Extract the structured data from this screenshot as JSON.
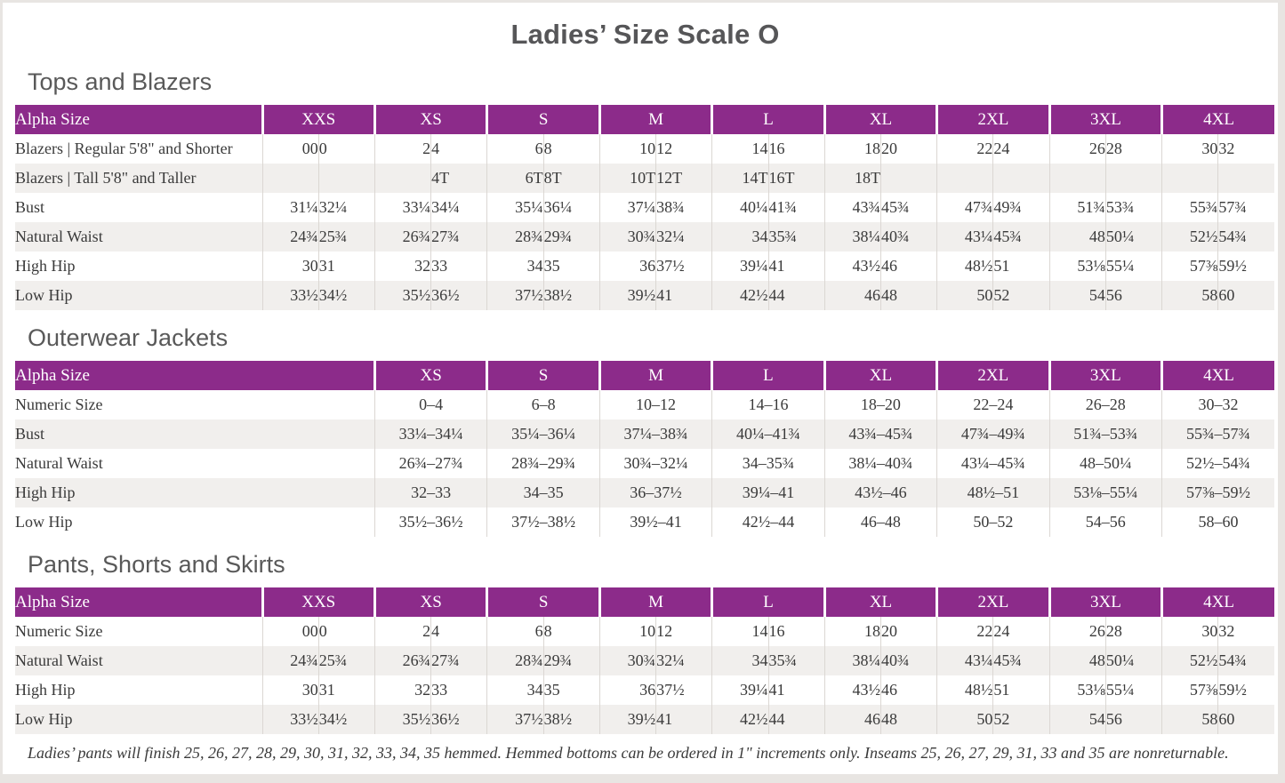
{
  "page": {
    "title": "Ladies’ Size Scale O"
  },
  "colors": {
    "accent_purple": "#8c2b8a",
    "row_stripe": "#f1efed",
    "heading_gray": "#595959",
    "text": "#3a3a3a"
  },
  "footnote": "Ladies’ pants will finish 25, 26, 27, 28, 29, 30, 31, 32, 33, 34, 35 hemmed. Hemmed bottoms can be ordered in 1\" increments only. Inseams 25, 26, 27, 29, 31, 33 and 35 are nonreturnable.",
  "sections": [
    {
      "heading": "Tops and Blazers",
      "header_label": "Alpha Size",
      "type": "paired",
      "sizes": [
        "XXS",
        "XS",
        "S",
        "M",
        "L",
        "XL",
        "2XL",
        "3XL",
        "4XL"
      ],
      "rows": [
        {
          "label": "Blazers  |  Regular 5'8\" and Shorter",
          "cells": [
            [
              "00",
              "0"
            ],
            [
              "2",
              "4"
            ],
            [
              "6",
              "8"
            ],
            [
              "10",
              "12"
            ],
            [
              "14",
              "16"
            ],
            [
              "18",
              "20"
            ],
            [
              "22",
              "24"
            ],
            [
              "26",
              "28"
            ],
            [
              "30",
              "32"
            ]
          ]
        },
        {
          "label": "Blazers  |  Tall 5'8\" and Taller",
          "cells": [
            [
              "",
              ""
            ],
            [
              "",
              "4T"
            ],
            [
              "6T",
              "8T"
            ],
            [
              "10T",
              "12T"
            ],
            [
              "14T",
              "16T"
            ],
            [
              "18T",
              ""
            ],
            [
              "",
              ""
            ],
            [
              "",
              ""
            ],
            [
              "",
              ""
            ]
          ]
        },
        {
          "label": "Bust",
          "cells": [
            [
              "31¼",
              "32¼"
            ],
            [
              "33¼",
              "34¼"
            ],
            [
              "35¼",
              "36¼"
            ],
            [
              "37¼",
              "38¾"
            ],
            [
              "40¼",
              "41¾"
            ],
            [
              "43¾",
              "45¾"
            ],
            [
              "47¾",
              "49¾"
            ],
            [
              "51¾",
              "53¾"
            ],
            [
              "55¾",
              "57¾"
            ]
          ]
        },
        {
          "label": "Natural Waist",
          "cells": [
            [
              "24¾",
              "25¾"
            ],
            [
              "26¾",
              "27¾"
            ],
            [
              "28¾",
              "29¾"
            ],
            [
              "30¾",
              "32¼"
            ],
            [
              "34",
              "35¾"
            ],
            [
              "38¼",
              "40¾"
            ],
            [
              "43¼",
              "45¾"
            ],
            [
              "48",
              "50¼"
            ],
            [
              "52½",
              "54¾"
            ]
          ]
        },
        {
          "label": "High Hip",
          "cells": [
            [
              "30",
              "31"
            ],
            [
              "32",
              "33"
            ],
            [
              "34",
              "35"
            ],
            [
              "36",
              "37½"
            ],
            [
              "39¼",
              "41"
            ],
            [
              "43½",
              "46"
            ],
            [
              "48½",
              "51"
            ],
            [
              "53⅛",
              "55¼"
            ],
            [
              "57⅜",
              "59½"
            ]
          ]
        },
        {
          "label": "Low Hip",
          "cells": [
            [
              "33½",
              "34½"
            ],
            [
              "35½",
              "36½"
            ],
            [
              "37½",
              "38½"
            ],
            [
              "39½",
              "41"
            ],
            [
              "42½",
              "44"
            ],
            [
              "46",
              "48"
            ],
            [
              "50",
              "52"
            ],
            [
              "54",
              "56"
            ],
            [
              "58",
              "60"
            ]
          ]
        }
      ]
    },
    {
      "heading": "Outerwear Jackets",
      "header_label": "Alpha Size",
      "type": "range",
      "sizes": [
        "XS",
        "S",
        "M",
        "L",
        "XL",
        "2XL",
        "3XL",
        "4XL"
      ],
      "rows": [
        {
          "label": "Numeric Size",
          "cells": [
            "0–4",
            "6–8",
            "10–12",
            "14–16",
            "18–20",
            "22–24",
            "26–28",
            "30–32"
          ]
        },
        {
          "label": "Bust",
          "cells": [
            "33¼–34¼",
            "35¼–36¼",
            "37¼–38¾",
            "40¼–41¾",
            "43¾–45¾",
            "47¾–49¾",
            "51¾–53¾",
            "55¾–57¾"
          ]
        },
        {
          "label": "Natural Waist",
          "cells": [
            "26¾–27¾",
            "28¾–29¾",
            "30¾–32¼",
            "34–35¾",
            "38¼–40¾",
            "43¼–45¾",
            "48–50¼",
            "52½–54¾"
          ]
        },
        {
          "label": "High Hip",
          "cells": [
            "32–33",
            "34–35",
            "36–37½",
            "39¼–41",
            "43½–46",
            "48½–51",
            "53⅛–55¼",
            "57⅜–59½"
          ]
        },
        {
          "label": "Low Hip",
          "cells": [
            "35½–36½",
            "37½–38½",
            "39½–41",
            "42½–44",
            "46–48",
            "50–52",
            "54–56",
            "58–60"
          ]
        }
      ]
    },
    {
      "heading": "Pants, Shorts and Skirts",
      "header_label": "Alpha Size",
      "type": "paired",
      "sizes": [
        "XXS",
        "XS",
        "S",
        "M",
        "L",
        "XL",
        "2XL",
        "3XL",
        "4XL"
      ],
      "rows": [
        {
          "label": "Numeric Size",
          "cells": [
            [
              "00",
              "0"
            ],
            [
              "2",
              "4"
            ],
            [
              "6",
              "8"
            ],
            [
              "10",
              "12"
            ],
            [
              "14",
              "16"
            ],
            [
              "18",
              "20"
            ],
            [
              "22",
              "24"
            ],
            [
              "26",
              "28"
            ],
            [
              "30",
              "32"
            ]
          ]
        },
        {
          "label": "Natural Waist",
          "cells": [
            [
              "24¾",
              "25¾"
            ],
            [
              "26¾",
              "27¾"
            ],
            [
              "28¾",
              "29¾"
            ],
            [
              "30¾",
              "32¼"
            ],
            [
              "34",
              "35¾"
            ],
            [
              "38¼",
              "40¾"
            ],
            [
              "43¼",
              "45¾"
            ],
            [
              "48",
              "50¼"
            ],
            [
              "52½",
              "54¾"
            ]
          ]
        },
        {
          "label": "High Hip",
          "cells": [
            [
              "30",
              "31"
            ],
            [
              "32",
              "33"
            ],
            [
              "34",
              "35"
            ],
            [
              "36",
              "37½"
            ],
            [
              "39¼",
              "41"
            ],
            [
              "43½",
              "46"
            ],
            [
              "48½",
              "51"
            ],
            [
              "53⅛",
              "55¼"
            ],
            [
              "57⅜",
              "59½"
            ]
          ]
        },
        {
          "label": "Low Hip",
          "cells": [
            [
              "33½",
              "34½"
            ],
            [
              "35½",
              "36½"
            ],
            [
              "37½",
              "38½"
            ],
            [
              "39½",
              "41"
            ],
            [
              "42½",
              "44"
            ],
            [
              "46",
              "48"
            ],
            [
              "50",
              "52"
            ],
            [
              "54",
              "56"
            ],
            [
              "58",
              "60"
            ]
          ]
        }
      ]
    }
  ]
}
